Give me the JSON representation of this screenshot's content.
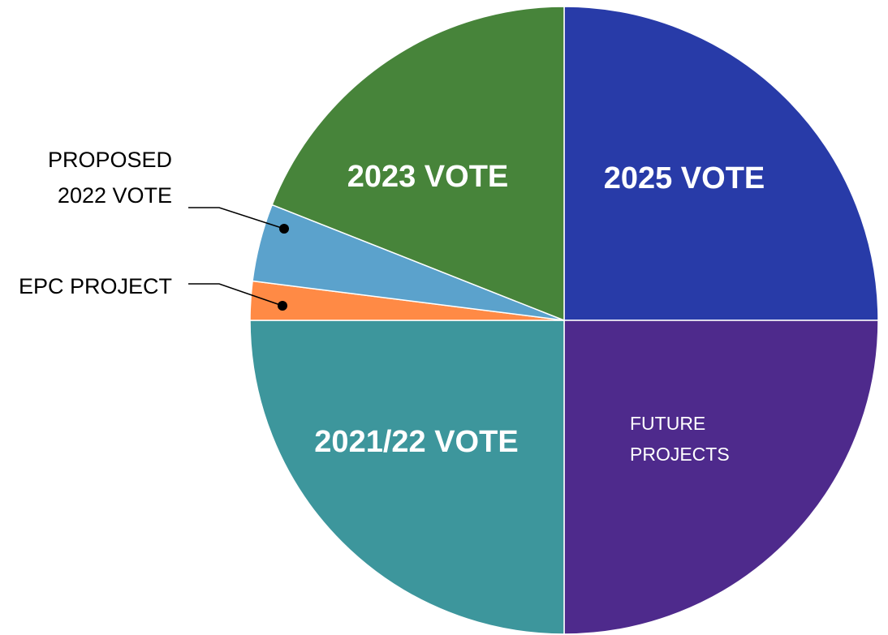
{
  "chart_data": {
    "type": "pie",
    "start": "12 o'clock",
    "direction": "clockwise",
    "slices": [
      {
        "label": "2025 VOTE",
        "value": 25.0,
        "color": "#283BA8",
        "label_style": "bold"
      },
      {
        "label": "FUTURE PROJECTS",
        "value": 25.0,
        "color": "#4E2A8C",
        "label_style": "light",
        "label_lines": [
          "FUTURE",
          "PROJECTS"
        ]
      },
      {
        "label": "2021/22 VOTE",
        "value": 25.0,
        "color": "#3D969C",
        "label_style": "bold"
      },
      {
        "label": "EPC PROJECT",
        "value": 2.0,
        "color": "#FF8A45",
        "label_style": "outside"
      },
      {
        "label": "PROPOSED 2022 VOTE",
        "value": 4.0,
        "color": "#5BA2CC",
        "label_style": "outside",
        "label_lines": [
          "PROPOSED",
          "2022 VOTE"
        ]
      },
      {
        "label": "2023 VOTE",
        "value": 19.0,
        "color": "#47843A",
        "label_style": "bold"
      }
    ]
  }
}
